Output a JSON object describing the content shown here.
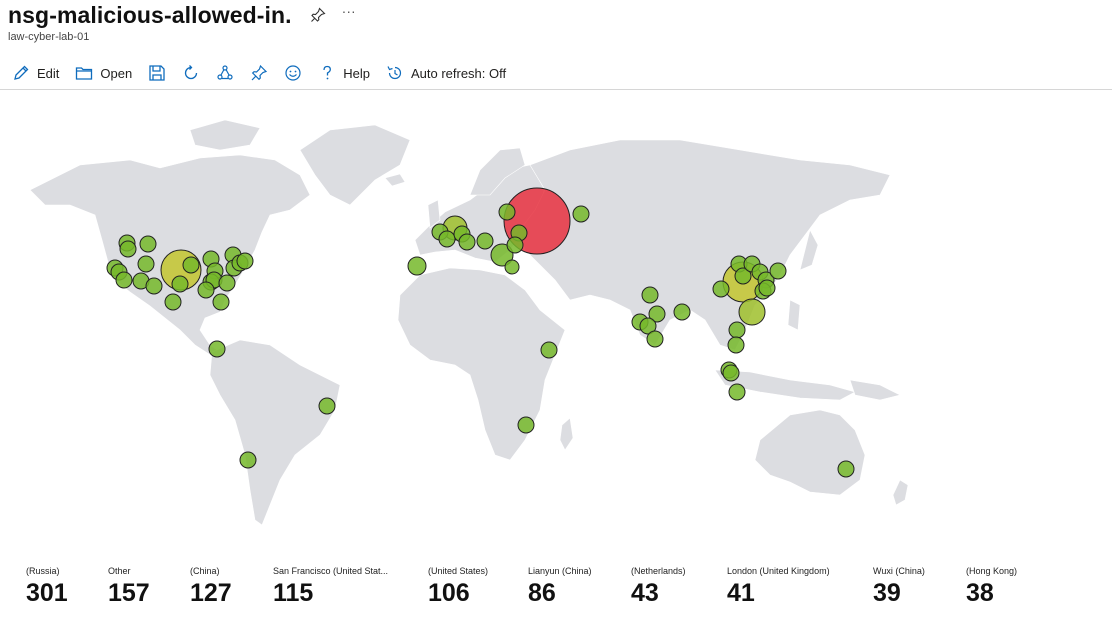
{
  "header": {
    "title": "nsg-malicious-allowed-in.",
    "more": "···",
    "subtitle": "law-cyber-lab-01"
  },
  "toolbar": {
    "edit": "Edit",
    "open": "Open",
    "help": "Help",
    "auto_refresh": "Auto refresh: Off"
  },
  "colors": {
    "land": "#dcdde1",
    "marker_low": "#76b82a",
    "marker_mid": "#c3c52e",
    "marker_high": "#e8313f",
    "marker_stroke": "#222222"
  },
  "stats": [
    {
      "label": "(Russia)",
      "value": "301"
    },
    {
      "label": "Other",
      "value": "157"
    },
    {
      "label": "(China)",
      "value": "127"
    },
    {
      "label": "San Francisco (United Stat...",
      "value": "115"
    },
    {
      "label": "(United States)",
      "value": "106"
    },
    {
      "label": "Lianyun (China)",
      "value": "86"
    },
    {
      "label": "(Netherlands)",
      "value": "43"
    },
    {
      "label": "London (United Kingdom)",
      "value": "41"
    },
    {
      "label": "Wuxi (China)",
      "value": "39"
    },
    {
      "label": "(Hong Kong)",
      "value": "38"
    }
  ]
}
